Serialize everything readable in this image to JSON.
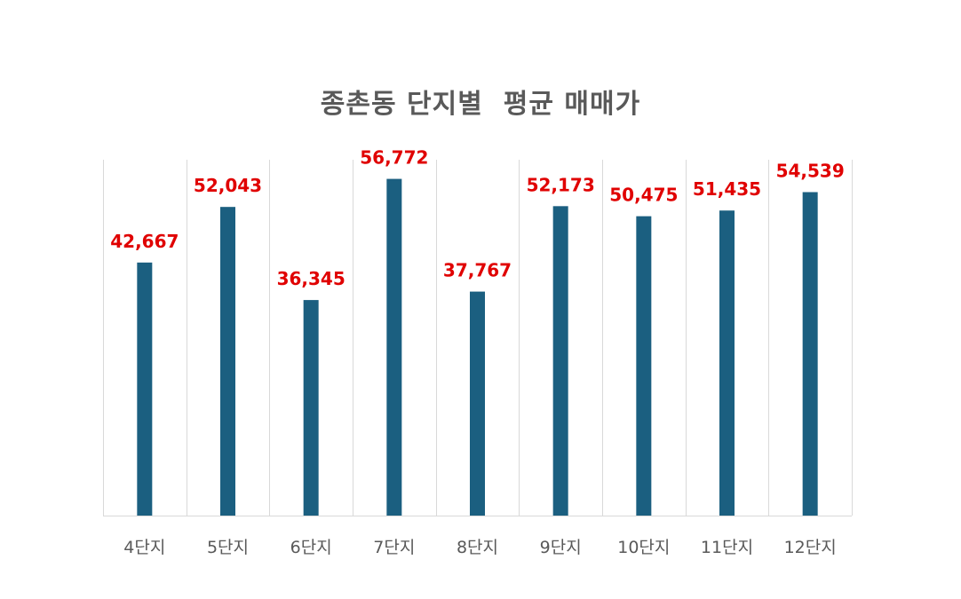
{
  "chart_data": {
    "type": "bar",
    "title": "종촌동 단지별  평균 매매가",
    "categories": [
      "4단지",
      "5단지",
      "6단지",
      "7단지",
      "8단지",
      "9단지",
      "10단지",
      "11단지",
      "12단지"
    ],
    "values": [
      42667,
      52043,
      36345,
      56772,
      37767,
      52173,
      50475,
      51435,
      54539
    ],
    "data_labels": [
      "42,667",
      "52,043",
      "36,345",
      "56,772",
      "37,767",
      "52,173",
      "50,475",
      "51,435",
      "54,539"
    ],
    "xlabel": "",
    "ylabel": "",
    "ylim": [
      0,
      60000
    ],
    "grid": "vertical",
    "legend": "none",
    "colors": {
      "bar": "#1b5f80",
      "data_label": "#e00000",
      "tick_label": "#595959",
      "title": "#595959",
      "gridline": "#d9d9d9"
    }
  }
}
